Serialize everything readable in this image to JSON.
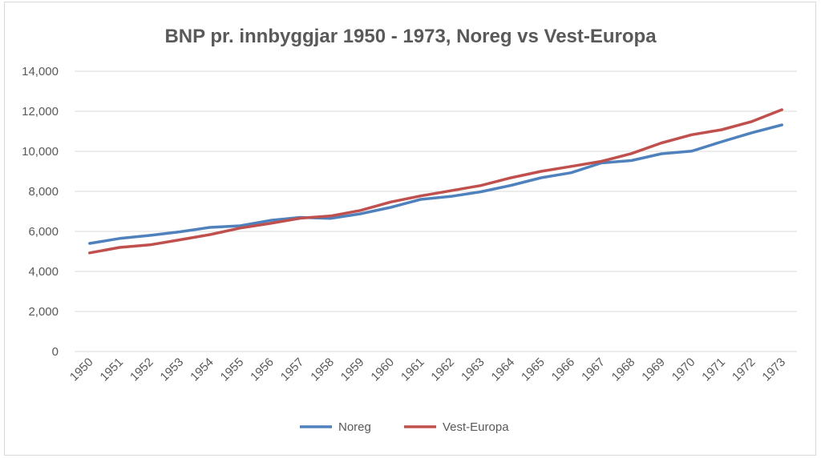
{
  "chart_data": {
    "type": "line",
    "title": "BNP pr. innbyggjar 1950 - 1973, Noreg vs Vest-Europa",
    "xlabel": "",
    "ylabel": "",
    "ylim": [
      0,
      14000
    ],
    "yticks": [
      "0",
      "2,000",
      "4,000",
      "6,000",
      "8,000",
      "10,000",
      "12,000",
      "14,000"
    ],
    "ytick_values": [
      0,
      2000,
      4000,
      6000,
      8000,
      10000,
      12000,
      14000
    ],
    "x": [
      "1950",
      "1951",
      "1952",
      "1953",
      "1954",
      "1955",
      "1956",
      "1957",
      "1958",
      "1959",
      "1960",
      "1961",
      "1962",
      "1963",
      "1964",
      "1965",
      "1966",
      "1967",
      "1968",
      "1969",
      "1970",
      "1971",
      "1972",
      "1973"
    ],
    "grid": true,
    "legend": "bottom",
    "series": [
      {
        "name": "Noreg",
        "color": "#4f81bd",
        "values": [
          5400,
          5650,
          5800,
          5980,
          6200,
          6280,
          6550,
          6700,
          6650,
          6880,
          7200,
          7600,
          7750,
          7980,
          8300,
          8680,
          8930,
          9420,
          9540,
          9880,
          10010,
          10480,
          10930,
          11320
        ]
      },
      {
        "name": "Vest-Europa",
        "color": "#c0504d",
        "values": [
          4930,
          5200,
          5330,
          5580,
          5840,
          6170,
          6400,
          6660,
          6770,
          7050,
          7470,
          7770,
          8030,
          8290,
          8680,
          9000,
          9250,
          9500,
          9890,
          10420,
          10830,
          11080,
          11490,
          12080
        ]
      }
    ]
  }
}
